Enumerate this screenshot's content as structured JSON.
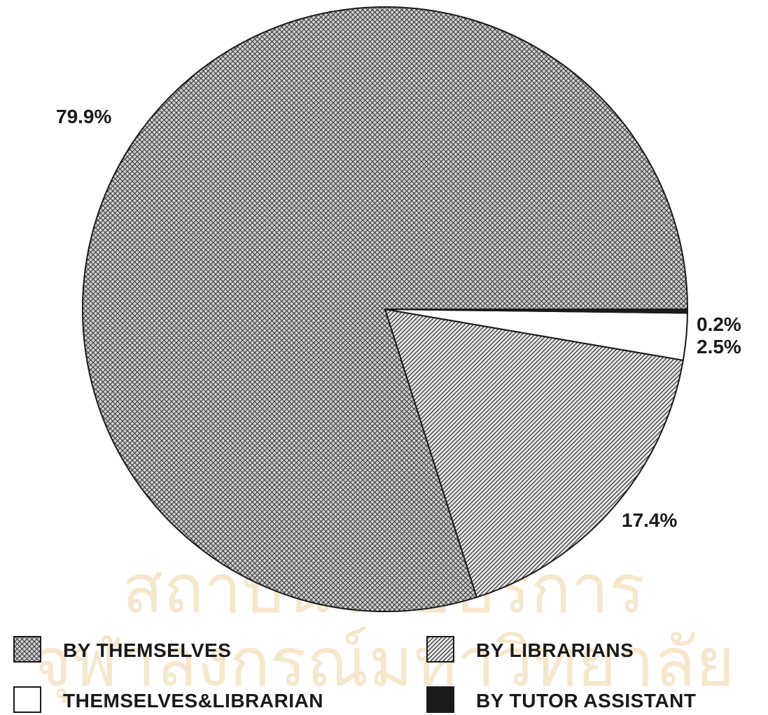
{
  "chart_data": {
    "type": "pie",
    "slices": [
      {
        "label": "BY THEMSELVES",
        "value": 79.9,
        "value_label": "79.9%",
        "pattern": "crosshatch"
      },
      {
        "label": "BY LIBRARIANS",
        "value": 17.4,
        "value_label": "17.4%",
        "pattern": "diagonal"
      },
      {
        "label": "THEMSELVES&LIBRARIAN",
        "value": 2.5,
        "value_label": "2.5%",
        "pattern": "white"
      },
      {
        "label": "BY TUTOR ASSISTANT",
        "value": 0.2,
        "value_label": "0.2%",
        "pattern": "solid"
      }
    ],
    "legend": {
      "placement": "bottom"
    },
    "colors": {
      "ink": "#1a1a1a",
      "hatch_bg": "#d0d0d0",
      "hatch_line": "#3a3a3a",
      "watermark": "#e9d3a5"
    }
  },
  "watermark": {
    "line1": "สถาบันวิทยบริการ",
    "line2": "จุฬาลงกรณ์มหาวิทยาลัย"
  }
}
